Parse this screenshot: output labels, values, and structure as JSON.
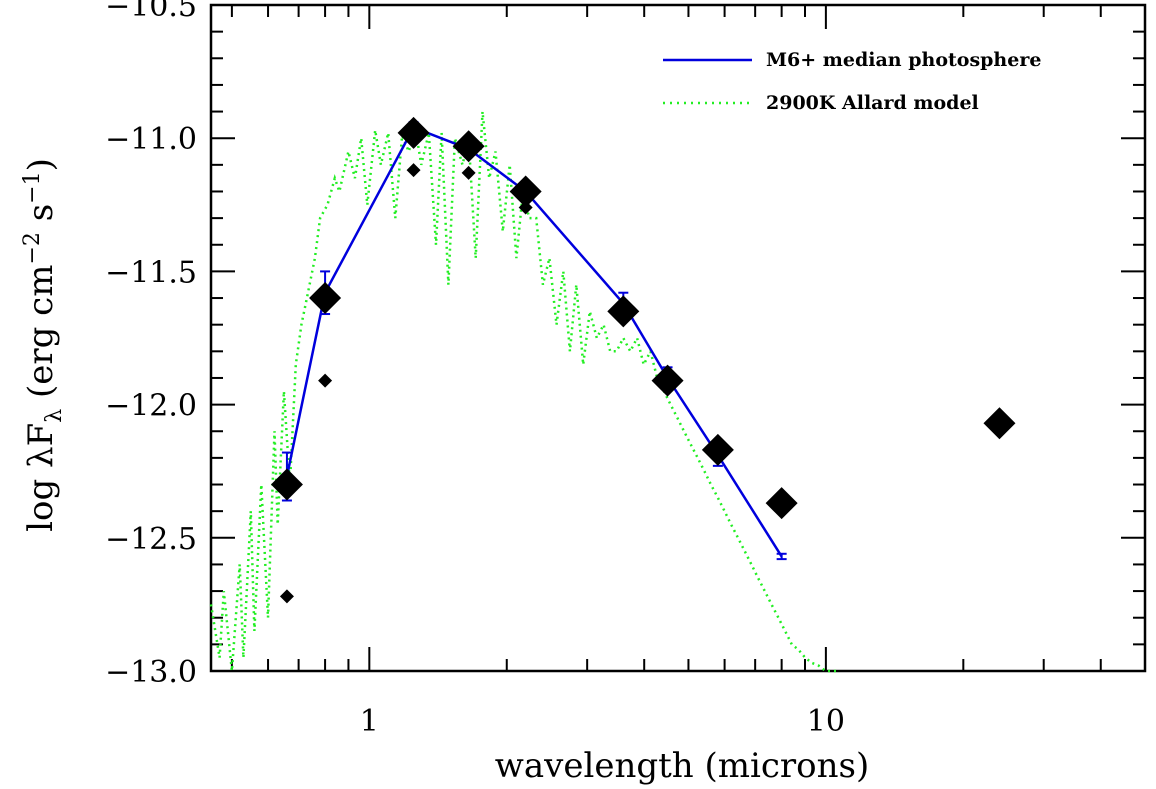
{
  "chart_data": {
    "type": "scatter",
    "xlabel": "wavelength (microns)",
    "ylabel": "log λF_λ (erg cm^-2 s^-1)",
    "ylabel_parts": {
      "pre": "log λF",
      "sub": "λ",
      "mid1": " (erg cm",
      "sup1": "−2",
      "mid2": " s",
      "sup2": "−1",
      "post": ")"
    },
    "xscale": "log",
    "xlim": [
      0.45,
      50
    ],
    "ylim": [
      -13.0,
      -10.5
    ],
    "x_ticks_labeled": [
      {
        "value": 1,
        "label": "1"
      },
      {
        "value": 10,
        "label": "10"
      }
    ],
    "y_ticks_labeled": [
      {
        "value": -10.5,
        "label": "−10.5"
      },
      {
        "value": -11.0,
        "label": "−11.0"
      },
      {
        "value": -11.5,
        "label": "−11.5"
      },
      {
        "value": -12.0,
        "label": "−12.0"
      },
      {
        "value": -12.5,
        "label": "−12.5"
      },
      {
        "value": -13.0,
        "label": "−13.0"
      }
    ],
    "grid": false,
    "legend_position": "top-right",
    "series": [
      {
        "name": "M6+ median photosphere",
        "kind": "line",
        "color": "#0000dd",
        "x": [
          0.66,
          0.8,
          1.25,
          1.65,
          2.2,
          3.6,
          4.5,
          5.8,
          8.0
        ],
        "y": [
          -12.27,
          -11.58,
          -10.96,
          -11.04,
          -11.2,
          -11.62,
          -11.9,
          -12.19,
          -12.57
        ],
        "yerr": [
          0.09,
          0.08,
          0.02,
          0.02,
          0.03,
          0.04,
          0.04,
          0.04,
          0.01
        ]
      },
      {
        "name": "2900K Allard model",
        "kind": "dotted-line",
        "color": "#22ee22",
        "x": [
          0.45,
          0.47,
          0.48,
          0.5,
          0.52,
          0.53,
          0.55,
          0.56,
          0.58,
          0.6,
          0.62,
          0.63,
          0.65,
          0.67,
          0.69,
          0.71,
          0.73,
          0.76,
          0.78,
          0.81,
          0.84,
          0.86,
          0.9,
          0.93,
          0.96,
          0.99,
          1.03,
          1.06,
          1.1,
          1.14,
          1.18,
          1.22,
          1.26,
          1.3,
          1.35,
          1.4,
          1.44,
          1.49,
          1.54,
          1.6,
          1.65,
          1.71,
          1.77,
          1.83,
          1.89,
          1.96,
          2.03,
          2.1,
          2.17,
          2.24,
          2.32,
          2.4,
          2.48,
          2.57,
          2.66,
          2.75,
          2.84,
          2.94,
          3.04,
          3.15,
          3.26,
          3.37,
          3.48,
          3.6,
          3.73,
          3.86,
          3.99,
          4.13,
          4.27,
          4.42,
          4.57,
          4.73,
          4.89,
          5.06,
          5.24,
          5.42,
          5.6,
          5.8,
          6.0,
          6.2,
          6.42,
          6.64,
          6.87,
          7.1,
          7.35,
          7.6,
          7.87,
          8.14,
          8.42,
          8.71,
          9.01,
          9.33,
          9.65,
          9.98,
          10.33,
          10.69
        ],
        "y": [
          -12.75,
          -12.95,
          -12.7,
          -13.0,
          -12.6,
          -12.95,
          -12.4,
          -12.85,
          -12.3,
          -12.8,
          -12.1,
          -12.45,
          -11.95,
          -12.3,
          -11.85,
          -11.7,
          -11.6,
          -11.45,
          -11.3,
          -11.25,
          -11.15,
          -11.2,
          -11.05,
          -11.15,
          -11.0,
          -11.25,
          -10.97,
          -11.1,
          -10.98,
          -11.3,
          -10.99,
          -11.05,
          -10.96,
          -11.1,
          -10.98,
          -11.4,
          -10.98,
          -11.55,
          -11.0,
          -11.1,
          -11.0,
          -11.45,
          -10.9,
          -11.15,
          -11.05,
          -11.35,
          -11.1,
          -11.45,
          -11.2,
          -11.3,
          -11.3,
          -11.55,
          -11.45,
          -11.7,
          -11.5,
          -11.8,
          -11.55,
          -11.85,
          -11.65,
          -11.75,
          -11.7,
          -11.8,
          -11.8,
          -11.75,
          -11.8,
          -11.75,
          -11.85,
          -11.8,
          -11.9,
          -11.95,
          -12.0,
          -12.05,
          -12.1,
          -12.15,
          -12.2,
          -12.25,
          -12.3,
          -12.35,
          -12.4,
          -12.45,
          -12.5,
          -12.55,
          -12.6,
          -12.65,
          -12.7,
          -12.75,
          -12.8,
          -12.85,
          -12.9,
          -12.92,
          -12.95,
          -12.97,
          -12.98,
          -13.0,
          -13.0,
          -13.0
        ]
      },
      {
        "name": "",
        "kind": "markers-large",
        "color": "#000000",
        "x": [
          0.66,
          0.8,
          1.25,
          1.65,
          2.2,
          3.6,
          4.5,
          5.8,
          8.0,
          24.0
        ],
        "y": [
          -12.3,
          -11.6,
          -10.98,
          -11.03,
          -11.2,
          -11.65,
          -11.91,
          -12.17,
          -12.37,
          -12.07
        ]
      },
      {
        "name": "",
        "kind": "markers-small",
        "color": "#000000",
        "x": [
          0.66,
          0.8,
          1.25,
          1.65,
          2.2,
          2.2
        ],
        "y": [
          -12.72,
          -11.91,
          -11.12,
          -11.13,
          -11.22,
          -11.26
        ]
      }
    ]
  }
}
